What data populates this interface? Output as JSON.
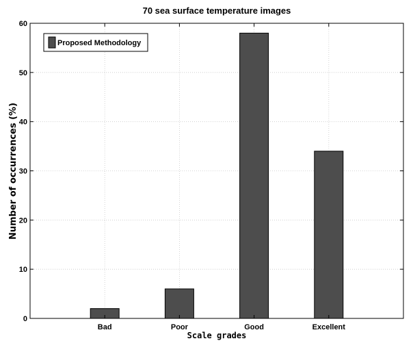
{
  "chart_data": {
    "type": "bar",
    "title": "70 sea surface temperature images",
    "xlabel": "Scale grades",
    "ylabel": "Number of occurrences (%)",
    "categories": [
      "Bad",
      "Poor",
      "Good",
      "Excellent"
    ],
    "series": [
      {
        "name": "Proposed Methodology",
        "values": [
          2,
          6,
          58,
          34
        ]
      }
    ],
    "ylim": [
      0,
      60
    ],
    "yticks": [
      0,
      10,
      20,
      30,
      40,
      50,
      60
    ],
    "grid": true,
    "legend_position": "top-left",
    "bar_color": "#4d4d4d"
  }
}
